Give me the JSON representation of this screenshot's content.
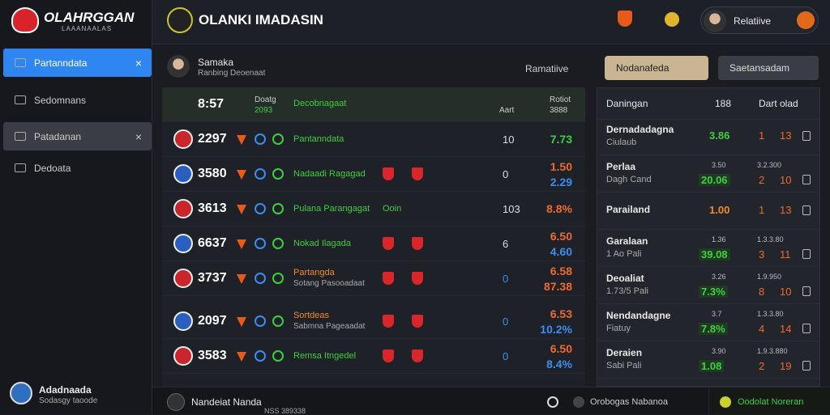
{
  "sidebar": {
    "logo": "OLAHRGGAN",
    "logo_sub": "LAAANAALAS",
    "nav": [
      {
        "label": "Partanndata",
        "active": true,
        "close": true
      },
      {
        "label": "Sedomnans"
      },
      {
        "label": "Patadanan",
        "close": true
      },
      {
        "label": "Dedoata"
      }
    ],
    "user": {
      "name": "Adadnaada",
      "sub": "Sodasgy taoode"
    }
  },
  "topbar": {
    "title": "OLANKI IMADASIN",
    "profile": "Relatiive"
  },
  "subheader": {
    "name": "Samaka",
    "sub": "Ranbing Deoenaat",
    "label": "Ramatiive",
    "dropdown1": "Nodanafeda",
    "dropdown2": "Saetansadam"
  },
  "table": {
    "header": {
      "score": "8:57",
      "col1": "Doatg",
      "col1_sub": "2093",
      "team": "Decobnagaat",
      "num": "Aart",
      "odds": "Rotiot",
      "odds_sub": "3888"
    },
    "rows": [
      {
        "score": "2297",
        "team": "Pantanndata",
        "num": "10",
        "odds": [
          {
            "text": "7.73",
            "color": "#3ecf3e"
          }
        ]
      },
      {
        "score": "3580",
        "team": "Nadaadi Ragagad",
        "num": "0",
        "odds": [
          {
            "text": "1.50",
            "color": "#f06a2a"
          },
          {
            "text": "2.29",
            "color": "#3a8ef0"
          }
        ]
      },
      {
        "score": "3613",
        "team": "Pulana Parangagat",
        "extra": "Ooin",
        "num": "103",
        "odds": [
          {
            "text": "8.8%",
            "color": "#f06a2a"
          }
        ]
      },
      {
        "score": "6637",
        "team": "Nokad Ilagada",
        "num": "6",
        "odds": [
          {
            "text": "6.50",
            "color": "#f06a2a"
          },
          {
            "text": "4.60",
            "color": "#3a8ef0"
          }
        ]
      },
      {
        "score": "3737",
        "team": "Partangda",
        "sub": "Sotang Pasooadaat",
        "num": "0",
        "odds": [
          {
            "text": "6.58",
            "color": "#f06a2a"
          },
          {
            "text": "87.38",
            "color": "#f06a2a"
          }
        ]
      },
      {
        "score": "2097",
        "team": "Sortdeas",
        "sub": "Sabmna Pageaadat",
        "num": "0",
        "odds": [
          {
            "text": "6.53",
            "color": "#f06a2a"
          },
          {
            "text": "10.2%",
            "color": "#3a8ef0"
          }
        ]
      },
      {
        "score": "3583",
        "team": "Remsa Itngedel",
        "num": "0",
        "odds": [
          {
            "text": "6.50",
            "color": "#f06a2a"
          },
          {
            "text": "8.4%",
            "color": "#3a8ef0"
          }
        ]
      }
    ]
  },
  "panel": {
    "header": {
      "name": "Daningan",
      "num": "188",
      "label": "Dart olad"
    },
    "rows": [
      {
        "name": "Dernadadagna",
        "sub": "Ciulaub",
        "main": "3.86",
        "a": "1",
        "b": "13"
      },
      {
        "name": "Perlaa",
        "sub": "Dagh Cand",
        "small": [
          "3.50",
          "3.2.300"
        ],
        "main": "20.06",
        "a": "2",
        "b": "10"
      },
      {
        "name": "Parailand",
        "main": "1.00",
        "a": "1",
        "b": "13"
      },
      {
        "name": "Garalaan",
        "sub": "1 Ao Pali",
        "small": [
          "1.36",
          "1.3.3.80"
        ],
        "main": "39.08",
        "a": "3",
        "b": "11"
      },
      {
        "name": "Deoaliat",
        "sub": "1.73/5 Pali",
        "small": [
          "3.26",
          "1.9.950"
        ],
        "main": "7.3%",
        "a": "8",
        "b": "10"
      },
      {
        "name": "Nendandagne",
        "sub": "Fiatuy",
        "small": [
          "3.7",
          "1.3.3.80"
        ],
        "main": "7.8%",
        "a": "4",
        "b": "14"
      },
      {
        "name": "Deraien",
        "sub": "Sabi Pali",
        "small": [
          "3.90",
          "1.9.3.880"
        ],
        "main": "1.08",
        "a": "2",
        "b": "19"
      }
    ]
  },
  "footer": {
    "name": "Nandeiat Nanda",
    "code": "NSS 389338",
    "mid": "Orobogas Nabanoa",
    "right": "Oodolat Noreran"
  }
}
